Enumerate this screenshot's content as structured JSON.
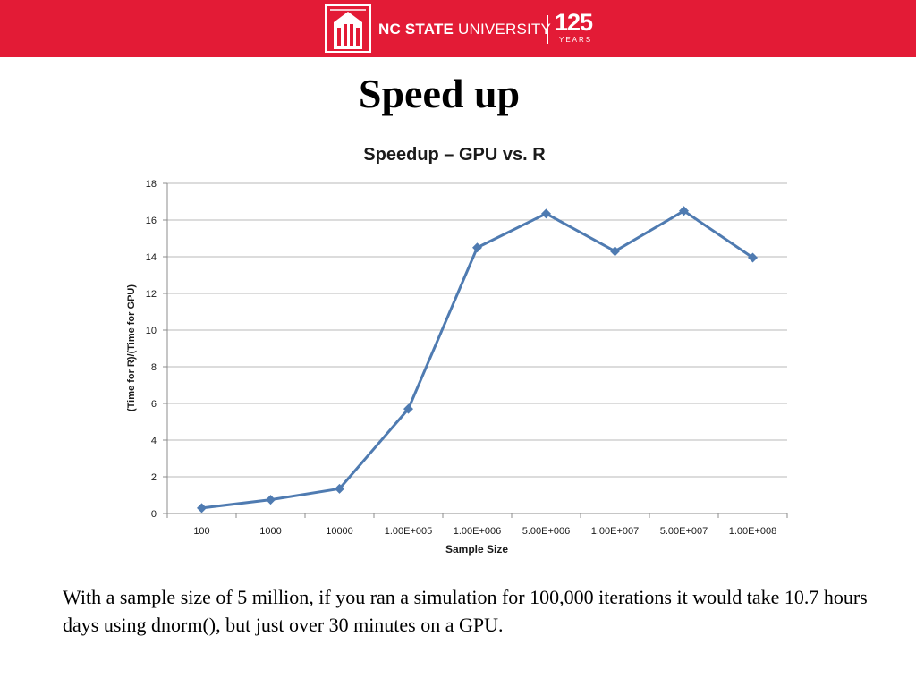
{
  "header": {
    "logo_name_bold": "NC STATE",
    "logo_name_regular": "UNIVERSITY",
    "logo_years_number": "125",
    "logo_years_word": "YEARS",
    "banner_color": "#e31b36"
  },
  "slide": {
    "title": "Speed up",
    "caption": "With a sample size of 5 million, if you ran a simulation for 100,000 iterations it would take 10.7 hours days using dnorm(), but just over 30 minutes on a GPU."
  },
  "chart_data": {
    "type": "line",
    "title": "Speedup – GPU vs. R",
    "xlabel": "Sample Size",
    "ylabel": "(Time for R)/(Time for GPU)",
    "categories": [
      "100",
      "1000",
      "10000",
      "1.00E+005",
      "1.00E+006",
      "5.00E+006",
      "1.00E+007",
      "5.00E+007",
      "1.00E+008"
    ],
    "series": [
      {
        "values": [
          0.3,
          0.75,
          1.35,
          5.7,
          14.5,
          16.35,
          14.3,
          16.5,
          13.95
        ],
        "color": "#4f7bb1",
        "marker": "diamond"
      }
    ],
    "ylim": [
      0,
      18
    ],
    "yticks": [
      0,
      2,
      4,
      6,
      8,
      10,
      12,
      14,
      16,
      18
    ],
    "grid": "horizontal",
    "legend": "none"
  }
}
